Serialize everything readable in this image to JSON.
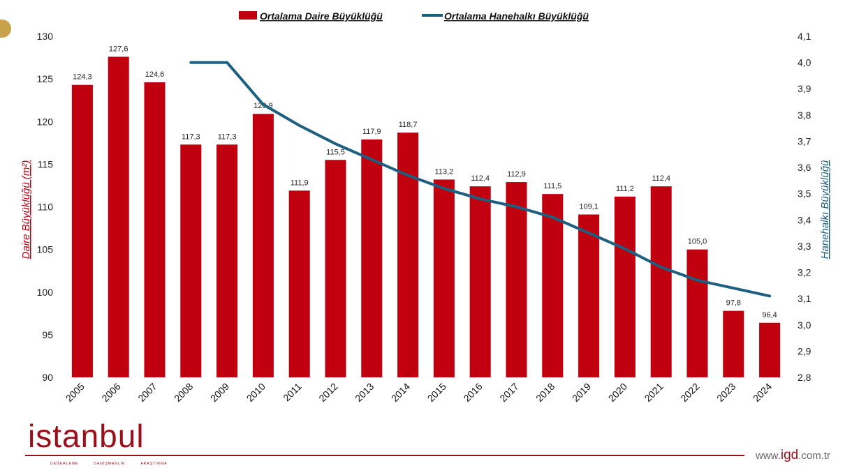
{
  "chart_data": {
    "type": "bar",
    "categories": [
      "2005",
      "2006",
      "2007",
      "2008",
      "2009",
      "2010",
      "2011",
      "2012",
      "2013",
      "2014",
      "2015",
      "2016",
      "2017",
      "2018",
      "2019",
      "2020",
      "2021",
      "2022",
      "2023",
      "2024"
    ],
    "series": [
      {
        "name": "Ortalama Daire Büyüklüğü",
        "type": "bar",
        "axis": "left",
        "color": "#c0000e",
        "values": [
          124.3,
          127.6,
          124.6,
          117.3,
          117.3,
          120.9,
          111.9,
          115.5,
          117.9,
          118.7,
          113.2,
          112.4,
          112.9,
          111.5,
          109.1,
          111.2,
          112.4,
          105.0,
          97.8,
          96.4
        ],
        "labels": [
          "124,3",
          "127,6",
          "124,6",
          "117,3",
          "117,3",
          "120,9",
          "111,9",
          "115,5",
          "117,9",
          "118,7",
          "113,2",
          "112,4",
          "112,9",
          "111,5",
          "109,1",
          "111,2",
          "112,4",
          "105,0",
          "97,8",
          "96,4"
        ]
      },
      {
        "name": "Ortalama Hanehalkı Büyüklüğü",
        "type": "line",
        "axis": "right",
        "color": "#1d5f80",
        "values": [
          null,
          null,
          null,
          4.0,
          4.0,
          3.84,
          3.76,
          3.69,
          3.63,
          3.57,
          3.52,
          3.48,
          3.45,
          3.41,
          3.35,
          3.29,
          3.22,
          3.17,
          3.14,
          3.11
        ]
      }
    ],
    "ylim_left": [
      90,
      130
    ],
    "ylim_right": [
      2.8,
      4.1
    ],
    "ylabel_left": "Daire Büyüklüğü (m²)",
    "ylabel_right": "Hanehalkı Büyüklüğü",
    "ylabel_left_color": "#c0000e",
    "ylabel_right_color": "#1d5f80",
    "yticks_left": [
      "90",
      "95",
      "100",
      "105",
      "110",
      "115",
      "120",
      "125",
      "130"
    ],
    "yticks_right": [
      "2,8",
      "2,9",
      "3,0",
      "3,1",
      "3,2",
      "3,3",
      "3,4",
      "3,5",
      "3,6",
      "3,7",
      "3,8",
      "3,9",
      "4,0",
      "4,1"
    ],
    "legend_position": "top-center",
    "grid": false
  },
  "footer": {
    "logo_text": "istanbul",
    "logo_subtext": [
      "DEĞERLEME",
      "DANIŞMANLIK",
      "ARAŞTIRMA"
    ],
    "url_prefix": "www.",
    "url_main": "igd",
    "url_suffix": ".com.tr",
    "brand_color": "#9b0f1a"
  }
}
